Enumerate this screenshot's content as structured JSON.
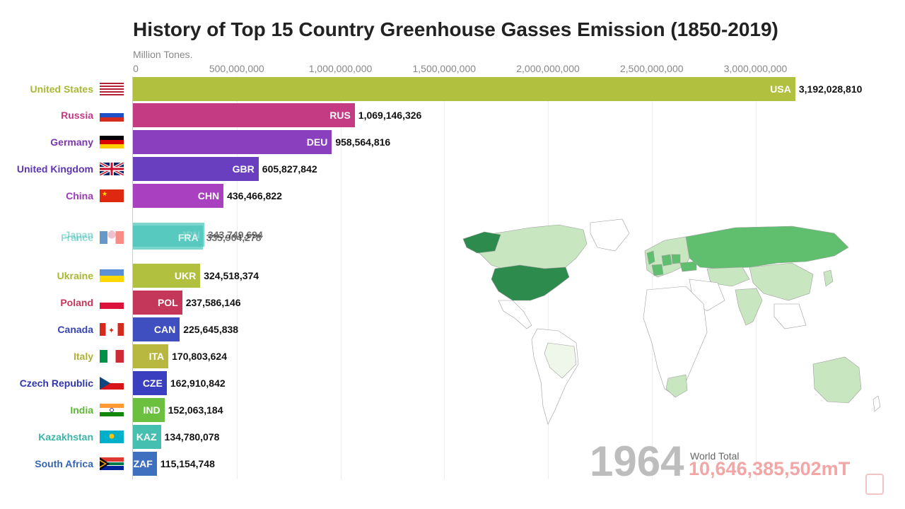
{
  "chart_data": {
    "type": "bar",
    "orientation": "horizontal",
    "title": "History of Top 15 Country Greenhouse Gasses Emission (1850-2019)",
    "unit_label": "Million Tones.",
    "x_ticks": [
      "0",
      "500,000,000",
      "1,000,000,000",
      "1,500,000,000",
      "2,000,000,000",
      "2,500,000,000",
      "3,000,000,000"
    ],
    "x_tick_values": [
      0,
      500000000,
      1000000000,
      1500000000,
      2000000000,
      2500000000,
      3000000000
    ],
    "xlim": [
      0,
      3200000000
    ],
    "grid": true,
    "bars": [
      {
        "name": "United States",
        "code": "USA",
        "value": 3192028810,
        "value_label": "3,192,028,810",
        "color": "#b1c03e",
        "label_color": "#a9b832",
        "flag": "flag-usa"
      },
      {
        "name": "Russia",
        "code": "RUS",
        "value": 1069146326,
        "value_label": "1,069,146,326",
        "color": "#c43a83",
        "label_color": "#c43a83",
        "flag": "flag-russia"
      },
      {
        "name": "Germany",
        "code": "DEU",
        "value": 958564816,
        "value_label": "958,564,816",
        "color": "#8a3fbf",
        "label_color": "#7d35b3",
        "flag": "flag-germany"
      },
      {
        "name": "United Kingdom",
        "code": "GBR",
        "value": 605827842,
        "value_label": "605,827,842",
        "color": "#6a3fbf",
        "label_color": "#5e35b1",
        "flag": "flag-uk"
      },
      {
        "name": "China",
        "code": "CHN",
        "value": 436466822,
        "value_label": "436,466,822",
        "color": "#a840c0",
        "label_color": "#9c3bb6",
        "flag": "flag-china"
      },
      {
        "name": "Japan",
        "code": "JPN",
        "value": 343749694,
        "value_label": "343,749,694",
        "color": "#48c4b8",
        "label_color": "#3fbfb2",
        "flag": "flag-japan"
      },
      {
        "name": "France",
        "code": "FRA",
        "value": 335964278,
        "value_label": "335,964,278",
        "color": "#48c4b8",
        "label_color": "#3fbfb2",
        "flag": "flag-france"
      },
      {
        "name": "Ukraine",
        "code": "UKR",
        "value": 324518374,
        "value_label": "324,518,374",
        "color": "#b1c03e",
        "label_color": "#a9b832",
        "flag": "flag-ukraine"
      },
      {
        "name": "Poland",
        "code": "POL",
        "value": 237586146,
        "value_label": "237,586,146",
        "color": "#c4375a",
        "label_color": "#c4375a",
        "flag": "flag-poland"
      },
      {
        "name": "Canada",
        "code": "CAN",
        "value": 225645838,
        "value_label": "225,645,838",
        "color": "#3f4fbf",
        "label_color": "#3545b3",
        "flag": "flag-canada"
      },
      {
        "name": "Italy",
        "code": "ITA",
        "value": 170803624,
        "value_label": "170,803,624",
        "color": "#b8b840",
        "label_color": "#b0b035",
        "flag": "flag-italy"
      },
      {
        "name": "Czech Republic",
        "code": "CZE",
        "value": 162910842,
        "value_label": "162,910,842",
        "color": "#3a3fbf",
        "label_color": "#3035aa",
        "flag": "flag-czech"
      },
      {
        "name": "India",
        "code": "IND",
        "value": 152063184,
        "value_label": "152,063,184",
        "color": "#6cc040",
        "label_color": "#5fb535",
        "flag": "flag-india"
      },
      {
        "name": "Kazakhstan",
        "code": "KAZ",
        "value": 134780078,
        "value_label": "134,780,078",
        "color": "#44bfb0",
        "label_color": "#3ab5a6",
        "flag": "flag-kazakhstan"
      },
      {
        "name": "South Africa",
        "code": "ZAF",
        "value": 115154748,
        "value_label": "115,154,748",
        "color": "#3f6fbf",
        "label_color": "#3565b0",
        "flag": "flag-south-africa"
      }
    ]
  },
  "year": "1964",
  "world_total_label": "World Total",
  "world_total_value": "10,646,385,502mT",
  "map": {
    "description_icon": "world-map-icon",
    "colors": {
      "high": "#2e8b4e",
      "mid": "#5fbf6e",
      "low": "#c8e6c0",
      "none": "#ffffff"
    }
  }
}
